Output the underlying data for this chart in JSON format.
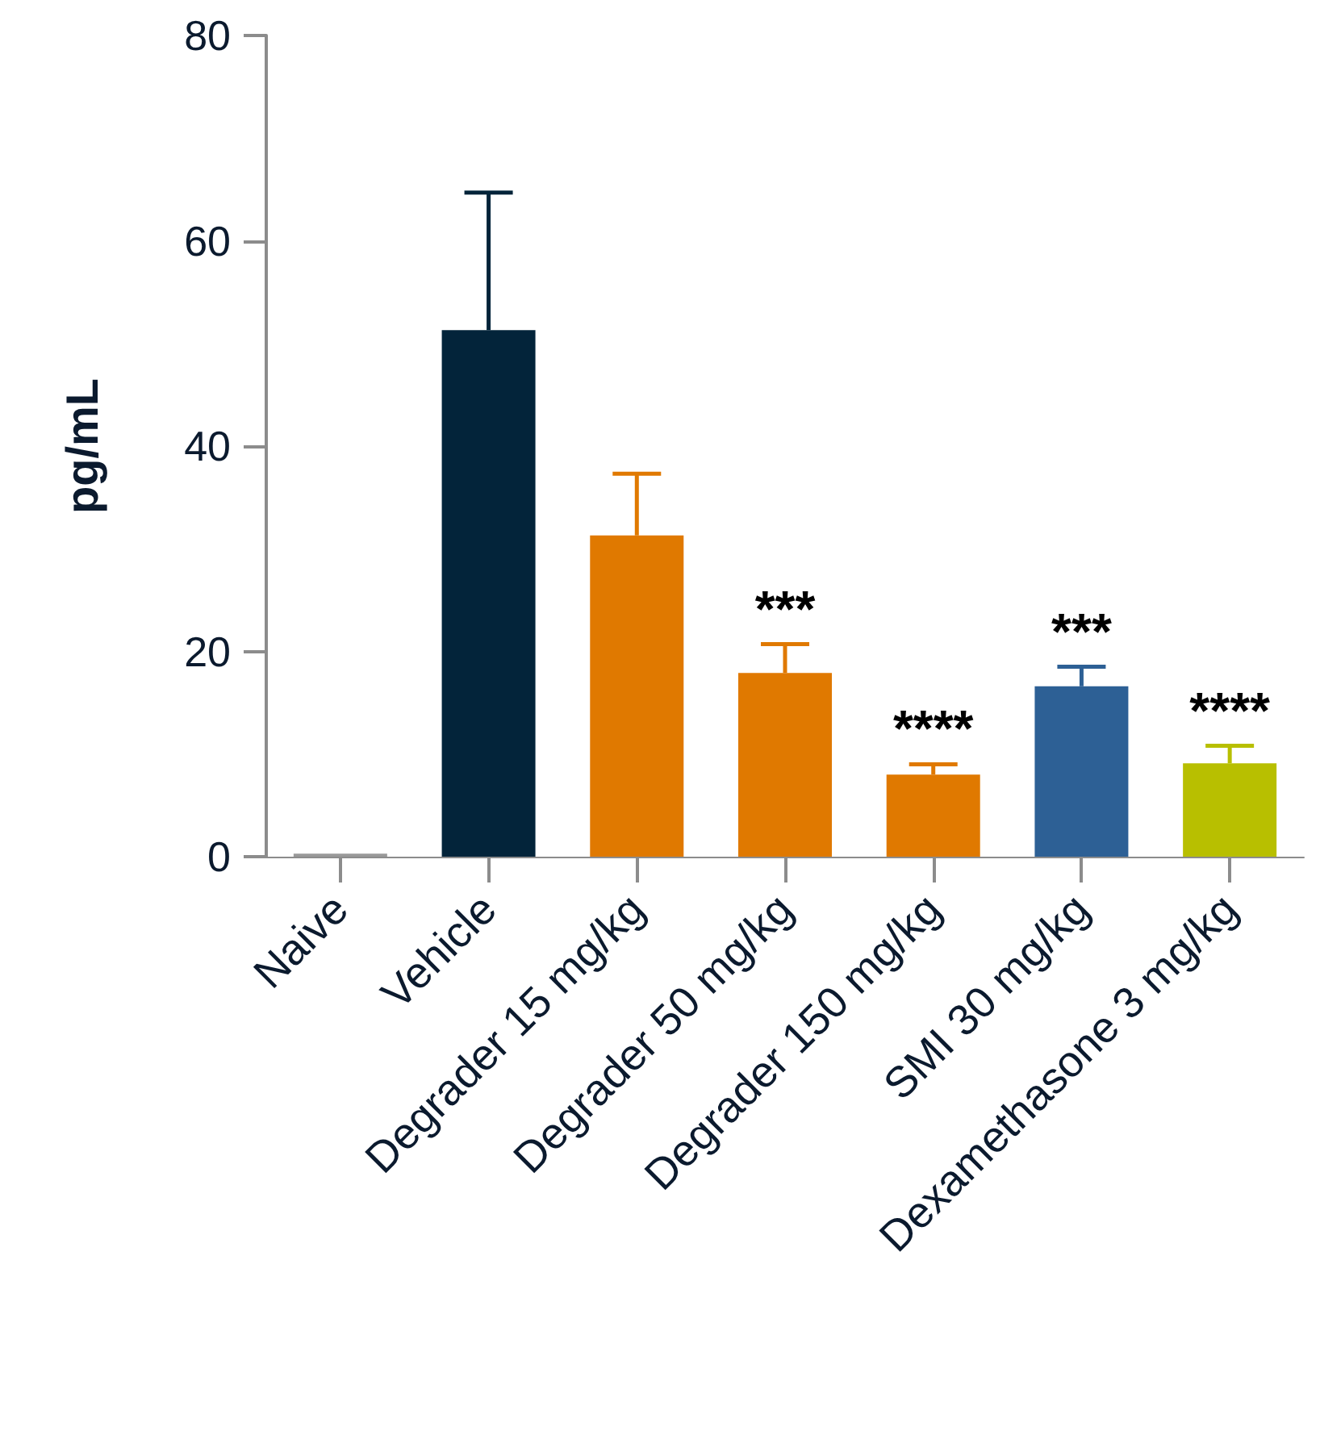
{
  "chart_data": {
    "type": "bar",
    "ylabel": "pg/mL",
    "categories": [
      "Naive",
      "Vehicle",
      "Degrader 15 mg/kg",
      "Degrader 50 mg/kg",
      "Degrader 150 mg/kg",
      "SMI 30 mg/kg",
      "Dexamethasone 3 mg/kg"
    ],
    "values": [
      0.3,
      51.3,
      31.3,
      17.9,
      8.0,
      16.6,
      9.1
    ],
    "colors": [
      "#999999",
      "#03243a",
      "#e07900",
      "#e07900",
      "#e07900",
      "#2d6095",
      "#b8bf00"
    ],
    "errors": [
      null,
      [
        51.3,
        64.7
      ],
      [
        31.3,
        37.3
      ],
      [
        17.9,
        20.7
      ],
      [
        8.0,
        9.0
      ],
      [
        16.6,
        18.5
      ],
      [
        9.1,
        10.8
      ]
    ],
    "annotations": [
      {
        "text": "***",
        "x": "Degrader 50 mg/kg",
        "y": 20.7
      },
      {
        "text": "****",
        "x": "Degrader 150 mg/kg",
        "y": 9.0
      },
      {
        "text": "***",
        "x": "SMI 30 mg/kg",
        "y": 18.5
      },
      {
        "text": "****",
        "x": "Dexamethasone 3 mg/kg",
        "y": 10.8
      }
    ],
    "ylim": [
      0,
      80
    ],
    "yticks": [
      0,
      20,
      40,
      60,
      80
    ],
    "grid": false
  }
}
